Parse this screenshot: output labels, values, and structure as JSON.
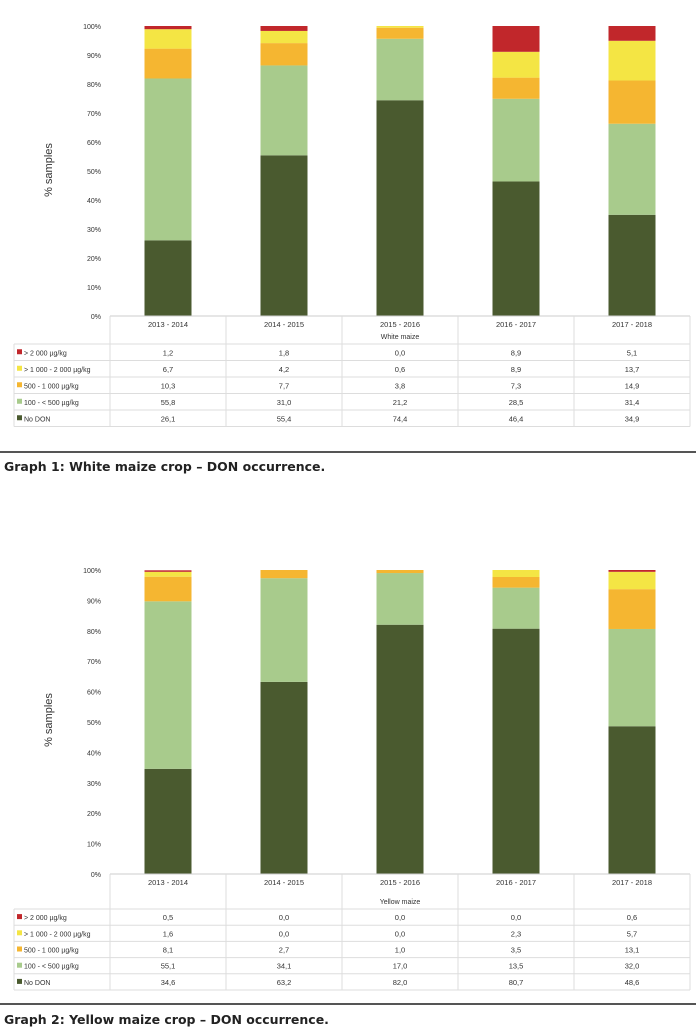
{
  "colors": {
    "no_don": "#4a5a2f",
    "100_500": "#a8cb8c",
    "500_1000": "#f5b631",
    "1000_2000": "#f4e544",
    "gt_2000": "#c1272b"
  },
  "chart_data": [
    {
      "type": "bar",
      "stacked": true,
      "ylabel": "% samples",
      "ylim": [
        0,
        100
      ],
      "yticks": [
        "0%",
        "10%",
        "20%",
        "30%",
        "40%",
        "50%",
        "60%",
        "70%",
        "80%",
        "90%",
        "100%"
      ],
      "categories": [
        "2013 - 2014",
        "2014 - 2015",
        "2015 - 2016",
        "2016 - 2017",
        "2017 - 2018"
      ],
      "group_label": "White maize",
      "series": [
        {
          "name": "> 2 000 µg/kg",
          "color_key": "gt_2000",
          "values": [
            "1,2",
            "1,8",
            "0,0",
            "8,9",
            "5,1"
          ]
        },
        {
          "name": "> 1 000 - 2 000 µg/kg",
          "color_key": "1000_2000",
          "values": [
            "6,7",
            "4,2",
            "0,6",
            "8,9",
            "13,7"
          ]
        },
        {
          "name": "500 - 1 000 µg/kg",
          "color_key": "500_1000",
          "values": [
            "10,3",
            "7,7",
            "3,8",
            "7,3",
            "14,9"
          ]
        },
        {
          "name": "100 - < 500 µg/kg",
          "color_key": "100_500",
          "values": [
            "55,8",
            "31,0",
            "21,2",
            "28,5",
            "31,4"
          ]
        },
        {
          "name": "No DON",
          "color_key": "no_don",
          "values": [
            "26,1",
            "55,4",
            "74,4",
            "46,4",
            "34,9"
          ]
        }
      ],
      "caption": "Graph 1: White maize crop – DON occurrence."
    },
    {
      "type": "bar",
      "stacked": true,
      "ylabel": "% samples",
      "ylim": [
        0,
        100
      ],
      "yticks": [
        "0%",
        "10%",
        "20%",
        "30%",
        "40%",
        "50%",
        "60%",
        "70%",
        "80%",
        "90%",
        "100%"
      ],
      "categories": [
        "2013 - 2014",
        "2014 - 2015",
        "2015 - 2016",
        "2016 - 2017",
        "2017 - 2018"
      ],
      "group_label": "Yellow maize",
      "series": [
        {
          "name": "> 2 000 µg/kg",
          "color_key": "gt_2000",
          "values": [
            "0,5",
            "0,0",
            "0,0",
            "0,0",
            "0,6"
          ]
        },
        {
          "name": "> 1 000 - 2 000 µg/kg",
          "color_key": "1000_2000",
          "values": [
            "1,6",
            "0,0",
            "0,0",
            "2,3",
            "5,7"
          ]
        },
        {
          "name": "500 - 1 000 µg/kg",
          "color_key": "500_1000",
          "values": [
            "8,1",
            "2,7",
            "1,0",
            "3,5",
            "13,1"
          ]
        },
        {
          "name": "100 - < 500 µg/kg",
          "color_key": "100_500",
          "values": [
            "55,1",
            "34,1",
            "17,0",
            "13,5",
            "32,0"
          ]
        },
        {
          "name": "No DON",
          "color_key": "no_don",
          "values": [
            "34,6",
            "63,2",
            "82,0",
            "80,7",
            "48,6"
          ]
        }
      ],
      "caption": "Graph 2: Yellow maize crop – DON occurrence."
    }
  ]
}
